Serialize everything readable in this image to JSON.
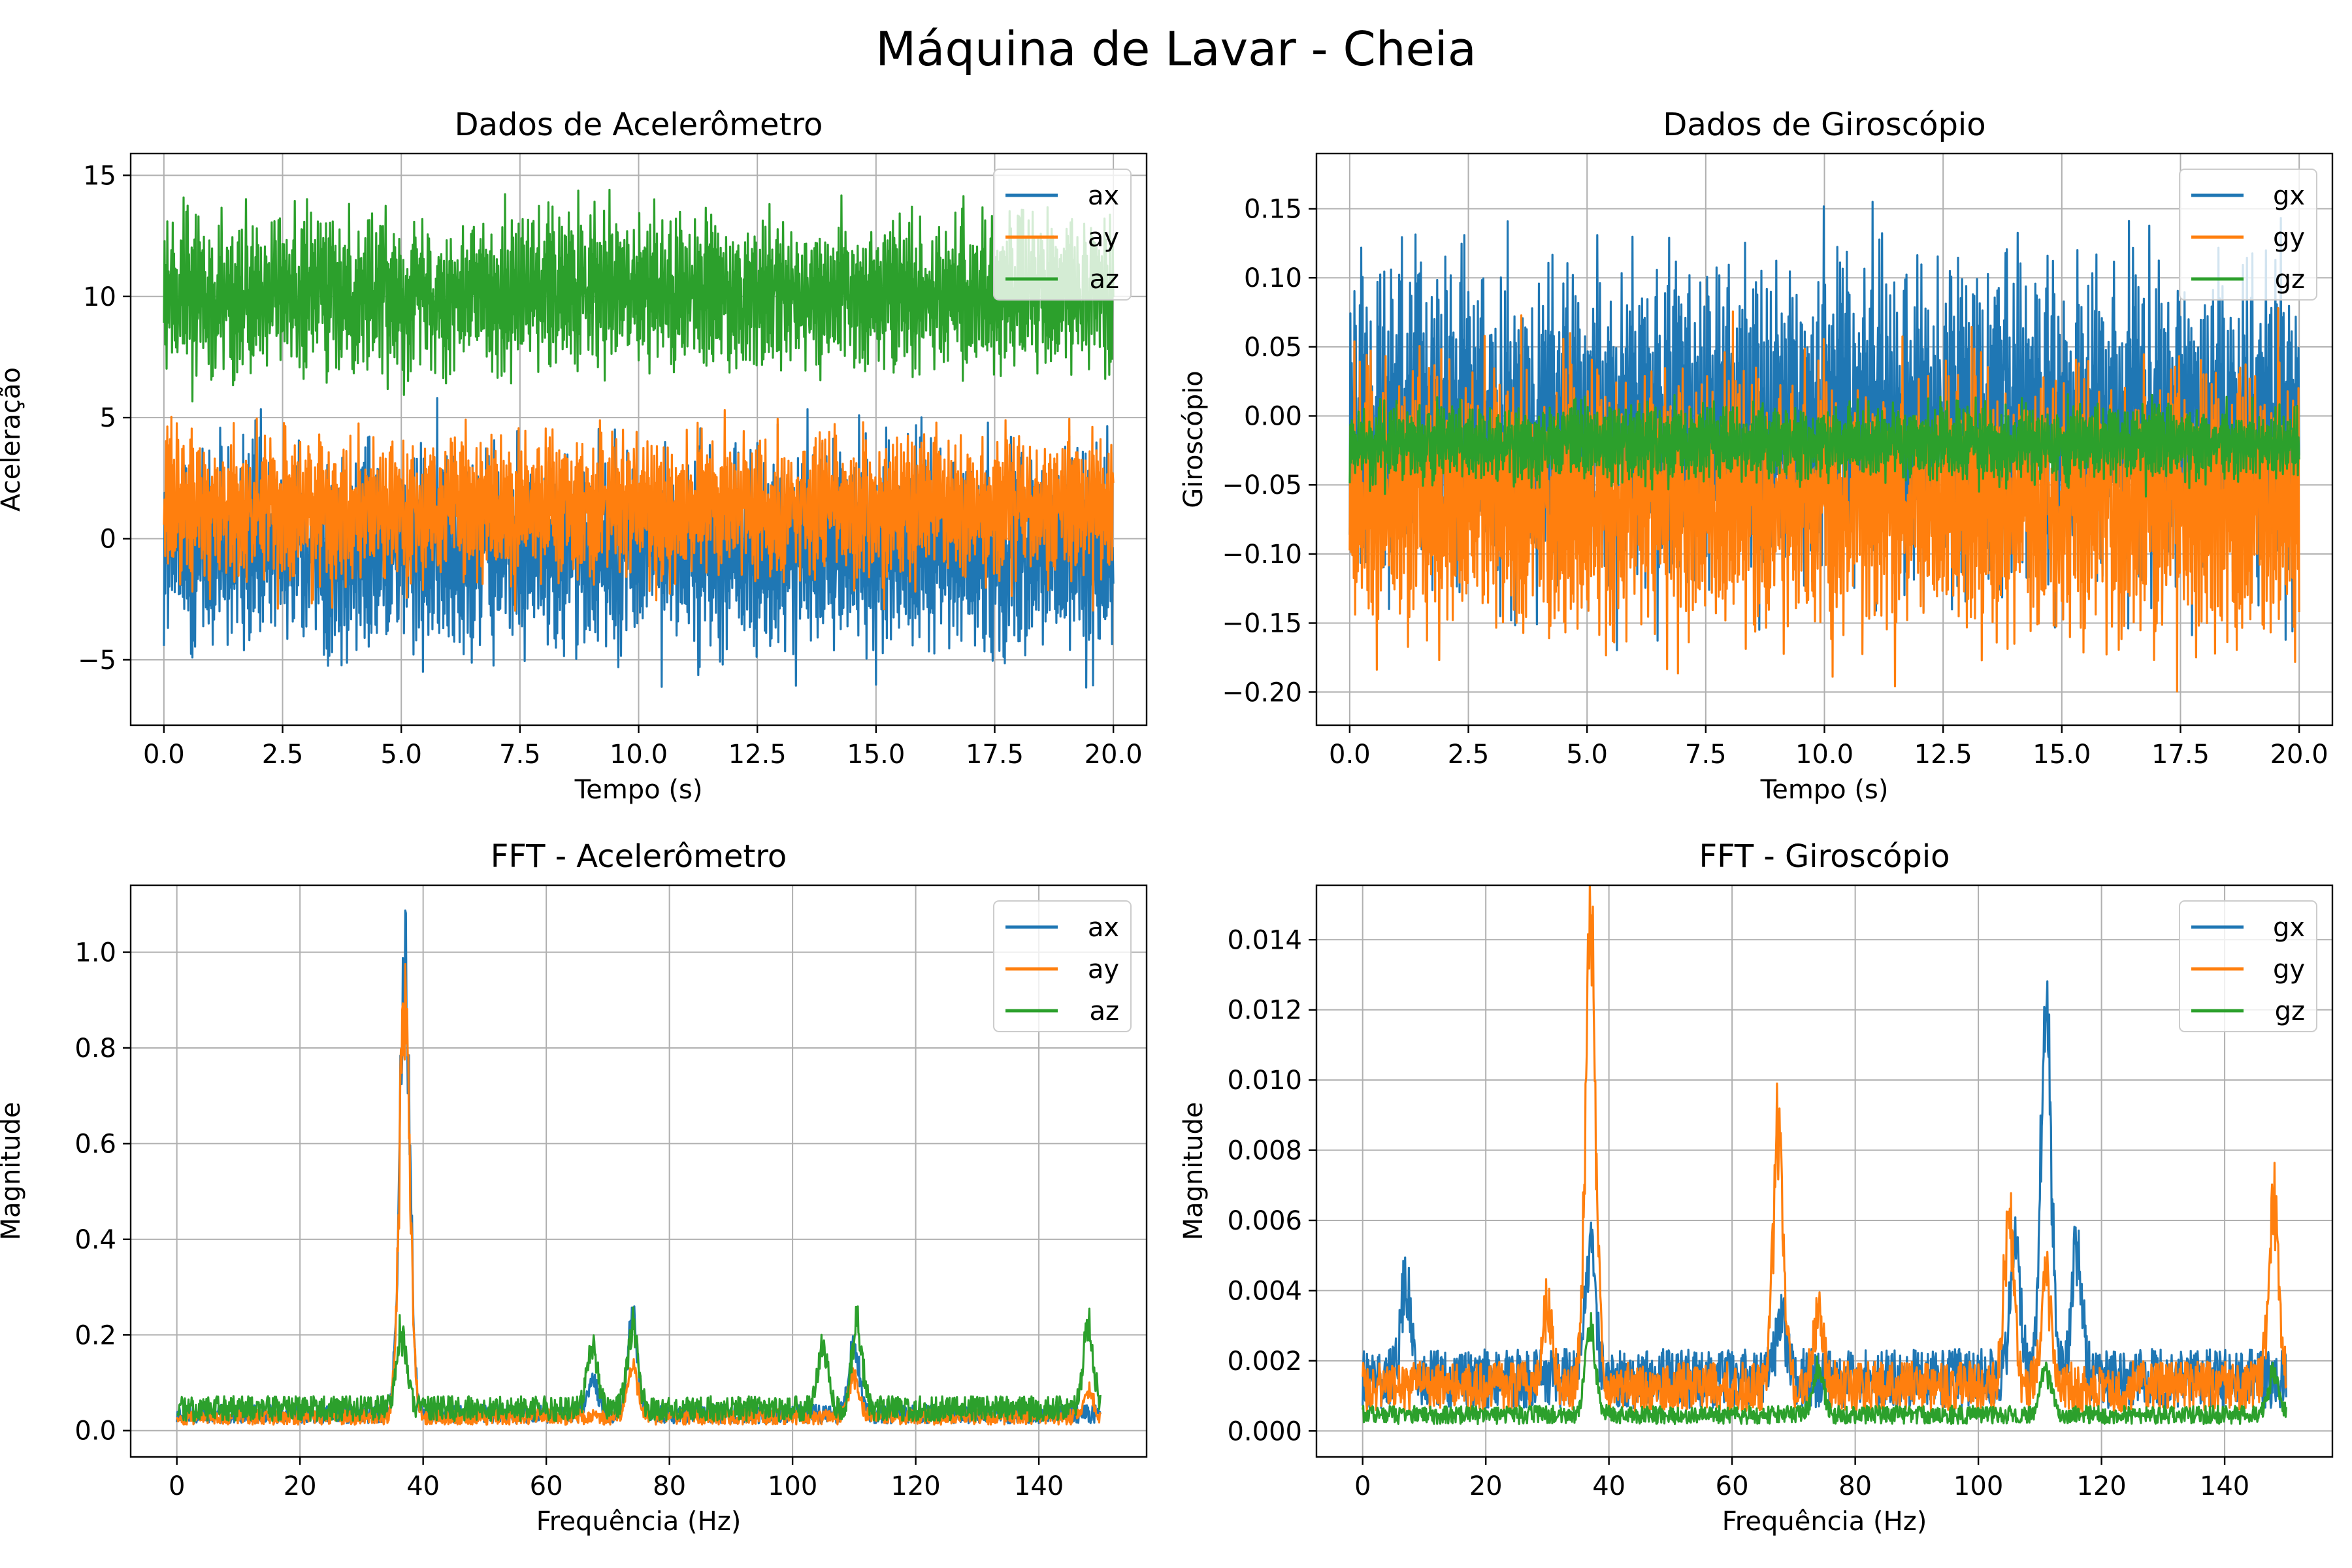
{
  "figure_title": "Máquina de Lavar - Cheia",
  "colors": {
    "blue": "#1f77b4",
    "orange": "#ff7f0e",
    "green": "#2ca02c"
  },
  "chart_data": [
    {
      "type": "line",
      "title": "Dados de Acelerômetro",
      "xlabel": "Tempo (s)",
      "ylabel": "Aceleração",
      "xlim": [
        -0.7,
        20.7
      ],
      "ylim": [
        -7.7,
        15.9
      ],
      "xticks": [
        0,
        2.5,
        5,
        7.5,
        10,
        12.5,
        15,
        17.5,
        20
      ],
      "xtick_labels": [
        "0.0",
        "2.5",
        "5.0",
        "7.5",
        "10.0",
        "12.5",
        "15.0",
        "17.5",
        "20.0"
      ],
      "yticks": [
        -5,
        0,
        5,
        10,
        15
      ],
      "ytick_labels": [
        "−5",
        "0",
        "5",
        "10",
        "15"
      ],
      "grid": true,
      "legend_position": "top-right",
      "series": [
        {
          "name": "ax",
          "color": "#1f77b4",
          "center": 0.0,
          "range": [
            -6.7,
            5.8
          ],
          "description": "noise band around 0"
        },
        {
          "name": "ay",
          "color": "#ff7f0e",
          "center": 1.2,
          "range": [
            -3.1,
            5.6
          ]
        },
        {
          "name": "az",
          "color": "#2ca02c",
          "center": 9.8,
          "range": [
            5.5,
            14.8
          ]
        }
      ]
    },
    {
      "type": "line",
      "title": "Dados de Giroscópio",
      "xlabel": "Tempo (s)",
      "ylabel": "Giroscópio",
      "xlim": [
        -0.7,
        20.7
      ],
      "ylim": [
        -0.224,
        0.19
      ],
      "xticks": [
        0,
        2.5,
        5,
        7.5,
        10,
        12.5,
        15,
        17.5,
        20
      ],
      "xtick_labels": [
        "0.0",
        "2.5",
        "5.0",
        "7.5",
        "10.0",
        "12.5",
        "15.0",
        "17.5",
        "20.0"
      ],
      "yticks": [
        -0.2,
        -0.15,
        -0.1,
        -0.05,
        0.0,
        0.05,
        0.1,
        0.15
      ],
      "ytick_labels": [
        "−0.20",
        "−0.15",
        "−0.10",
        "−0.05",
        "0.00",
        "0.05",
        "0.10",
        "0.15"
      ],
      "grid": true,
      "legend_position": "top-right",
      "series": [
        {
          "name": "gx",
          "color": "#1f77b4",
          "center": 0.0,
          "range": [
            -0.18,
            0.17
          ]
        },
        {
          "name": "gy",
          "color": "#ff7f0e",
          "center": -0.05,
          "range": [
            -0.205,
            0.08
          ]
        },
        {
          "name": "gz",
          "color": "#2ca02c",
          "center": -0.02,
          "range": [
            -0.06,
            0.02
          ]
        }
      ]
    },
    {
      "type": "line",
      "title": "FFT - Acelerômetro",
      "xlabel": "Frequência (Hz)",
      "ylabel": "Magnitude",
      "xlim": [
        -7.5,
        157.5
      ],
      "ylim": [
        -0.055,
        1.14
      ],
      "xticks": [
        0,
        20,
        40,
        60,
        80,
        100,
        120,
        140
      ],
      "xtick_labels": [
        "0",
        "20",
        "40",
        "60",
        "80",
        "100",
        "120",
        "140"
      ],
      "yticks": [
        0.0,
        0.2,
        0.4,
        0.6,
        0.8,
        1.0
      ],
      "ytick_labels": [
        "0.0",
        "0.2",
        "0.4",
        "0.6",
        "0.8",
        "1.0"
      ],
      "grid": true,
      "legend_position": "top-right",
      "series": [
        {
          "name": "ax",
          "color": "#1f77b4",
          "baseline": 0.03,
          "peaks": [
            [
              37,
              1.08
            ],
            [
              74,
              0.23
            ],
            [
              110,
              0.17
            ],
            [
              67.5,
              0.08
            ]
          ]
        },
        {
          "name": "ay",
          "color": "#ff7f0e",
          "baseline": 0.025,
          "peaks": [
            [
              37,
              1.0
            ],
            [
              74,
              0.12
            ],
            [
              110,
              0.1
            ],
            [
              148,
              0.06
            ]
          ]
        },
        {
          "name": "az",
          "color": "#2ca02c",
          "baseline": 0.04,
          "peaks": [
            [
              36.5,
              0.19
            ],
            [
              67.5,
              0.16
            ],
            [
              74,
              0.2
            ],
            [
              105,
              0.15
            ],
            [
              110.5,
              0.2
            ],
            [
              148,
              0.2
            ]
          ]
        }
      ]
    },
    {
      "type": "line",
      "title": "FFT - Giroscópio",
      "xlabel": "Frequência (Hz)",
      "ylabel": "Magnitude",
      "xlim": [
        -7.5,
        157.5
      ],
      "ylim": [
        -0.00074,
        0.01555
      ],
      "xticks": [
        0,
        20,
        40,
        60,
        80,
        100,
        120,
        140
      ],
      "xtick_labels": [
        "0",
        "20",
        "40",
        "60",
        "80",
        "100",
        "120",
        "140"
      ],
      "yticks": [
        0.0,
        0.002,
        0.004,
        0.006,
        0.008,
        0.01,
        0.012,
        0.014
      ],
      "ytick_labels": [
        "0.000",
        "0.002",
        "0.004",
        "0.006",
        "0.008",
        "0.010",
        "0.012",
        "0.014"
      ],
      "grid": true,
      "legend_position": "top-right",
      "series": [
        {
          "name": "gx",
          "color": "#1f77b4",
          "baseline": 0.0013,
          "peaks": [
            [
              7,
              0.0032
            ],
            [
              37,
              0.0045
            ],
            [
              68,
              0.002
            ],
            [
              106,
              0.0045
            ],
            [
              111,
              0.0127
            ],
            [
              116,
              0.0042
            ]
          ]
        },
        {
          "name": "gy",
          "color": "#ff7f0e",
          "baseline": 0.0011,
          "peaks": [
            [
              30,
              0.0028
            ],
            [
              37,
              0.0148
            ],
            [
              67.5,
              0.0083
            ],
            [
              74,
              0.0025
            ],
            [
              105,
              0.0055
            ],
            [
              111,
              0.0035
            ],
            [
              148,
              0.0062
            ]
          ]
        },
        {
          "name": "gz",
          "color": "#2ca02c",
          "baseline": 0.0004,
          "peaks": [
            [
              37,
              0.0028
            ],
            [
              74,
              0.0016
            ],
            [
              111,
              0.0015
            ],
            [
              148,
              0.0014
            ]
          ]
        }
      ]
    }
  ]
}
